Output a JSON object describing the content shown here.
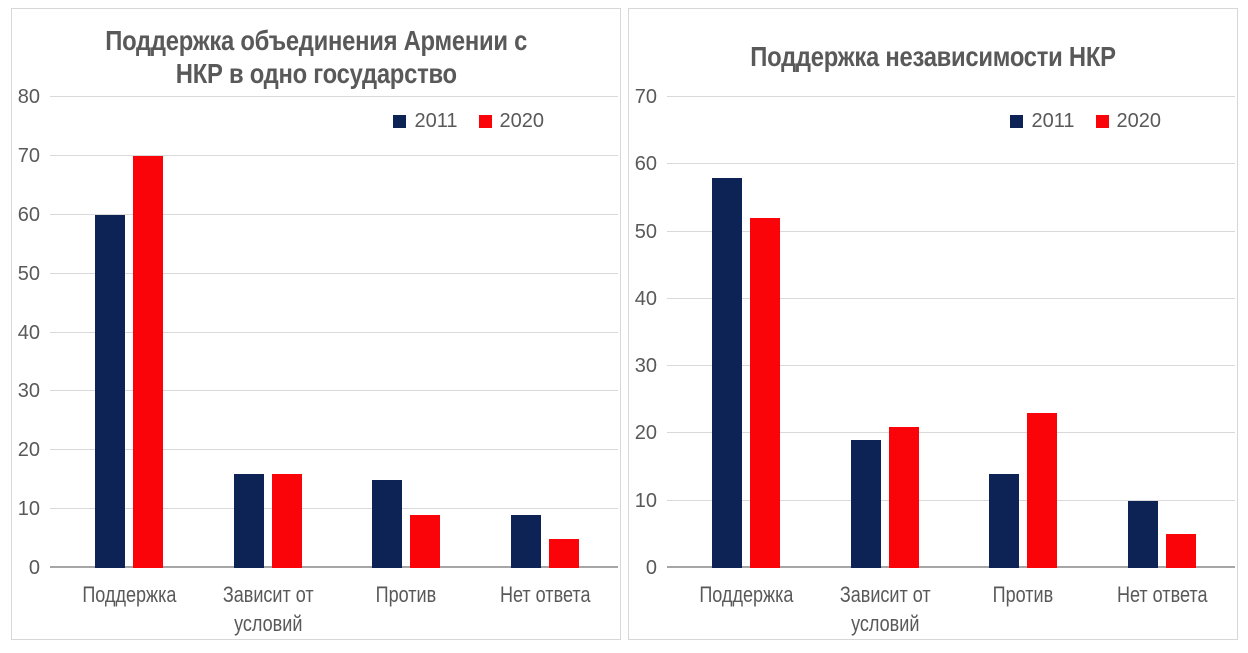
{
  "page": {
    "background": "#FFFFFF"
  },
  "colors": {
    "series_2011": "#0E2355",
    "series_2020": "#FB0409",
    "text_gray": "#595959",
    "gridline": "#D9D9D9",
    "axis_line": "#A6A6A6",
    "panel_border": "#D7D7D7"
  },
  "chart_data": [
    {
      "type": "bar",
      "title": "Поддержка объединения Армении с НКР в одно государство",
      "title_lines": [
        "Поддержка объединения Армении с",
        "НКР в одно государство"
      ],
      "categories": [
        "Поддержка",
        "Зависит от условий",
        "Против",
        "Нет ответа"
      ],
      "series": [
        {
          "name": "2011",
          "color": "#0E2355",
          "values": [
            60,
            16,
            15,
            9
          ]
        },
        {
          "name": "2020",
          "color": "#FB0409",
          "values": [
            70,
            16,
            9,
            5
          ]
        }
      ],
      "ylim": [
        0,
        80
      ],
      "yticks": [
        80,
        70,
        60,
        50,
        40,
        30,
        20,
        10,
        0
      ],
      "xlabel": "",
      "ylabel": "",
      "grid": true,
      "legend_position": "top-right"
    },
    {
      "type": "bar",
      "title": "Поддержка независимости НКР",
      "title_lines": [
        "Поддержка независимости НКР"
      ],
      "categories": [
        "Поддержка",
        "Зависит от условий",
        "Против",
        "Нет ответа"
      ],
      "series": [
        {
          "name": "2011",
          "color": "#0E2355",
          "values": [
            58,
            19,
            14,
            10
          ]
        },
        {
          "name": "2020",
          "color": "#FB0409",
          "values": [
            52,
            21,
            23,
            5
          ]
        }
      ],
      "ylim": [
        0,
        70
      ],
      "yticks": [
        70,
        60,
        50,
        40,
        30,
        20,
        10,
        0
      ],
      "xlabel": "",
      "ylabel": "",
      "grid": true,
      "legend_position": "top-right"
    }
  ]
}
